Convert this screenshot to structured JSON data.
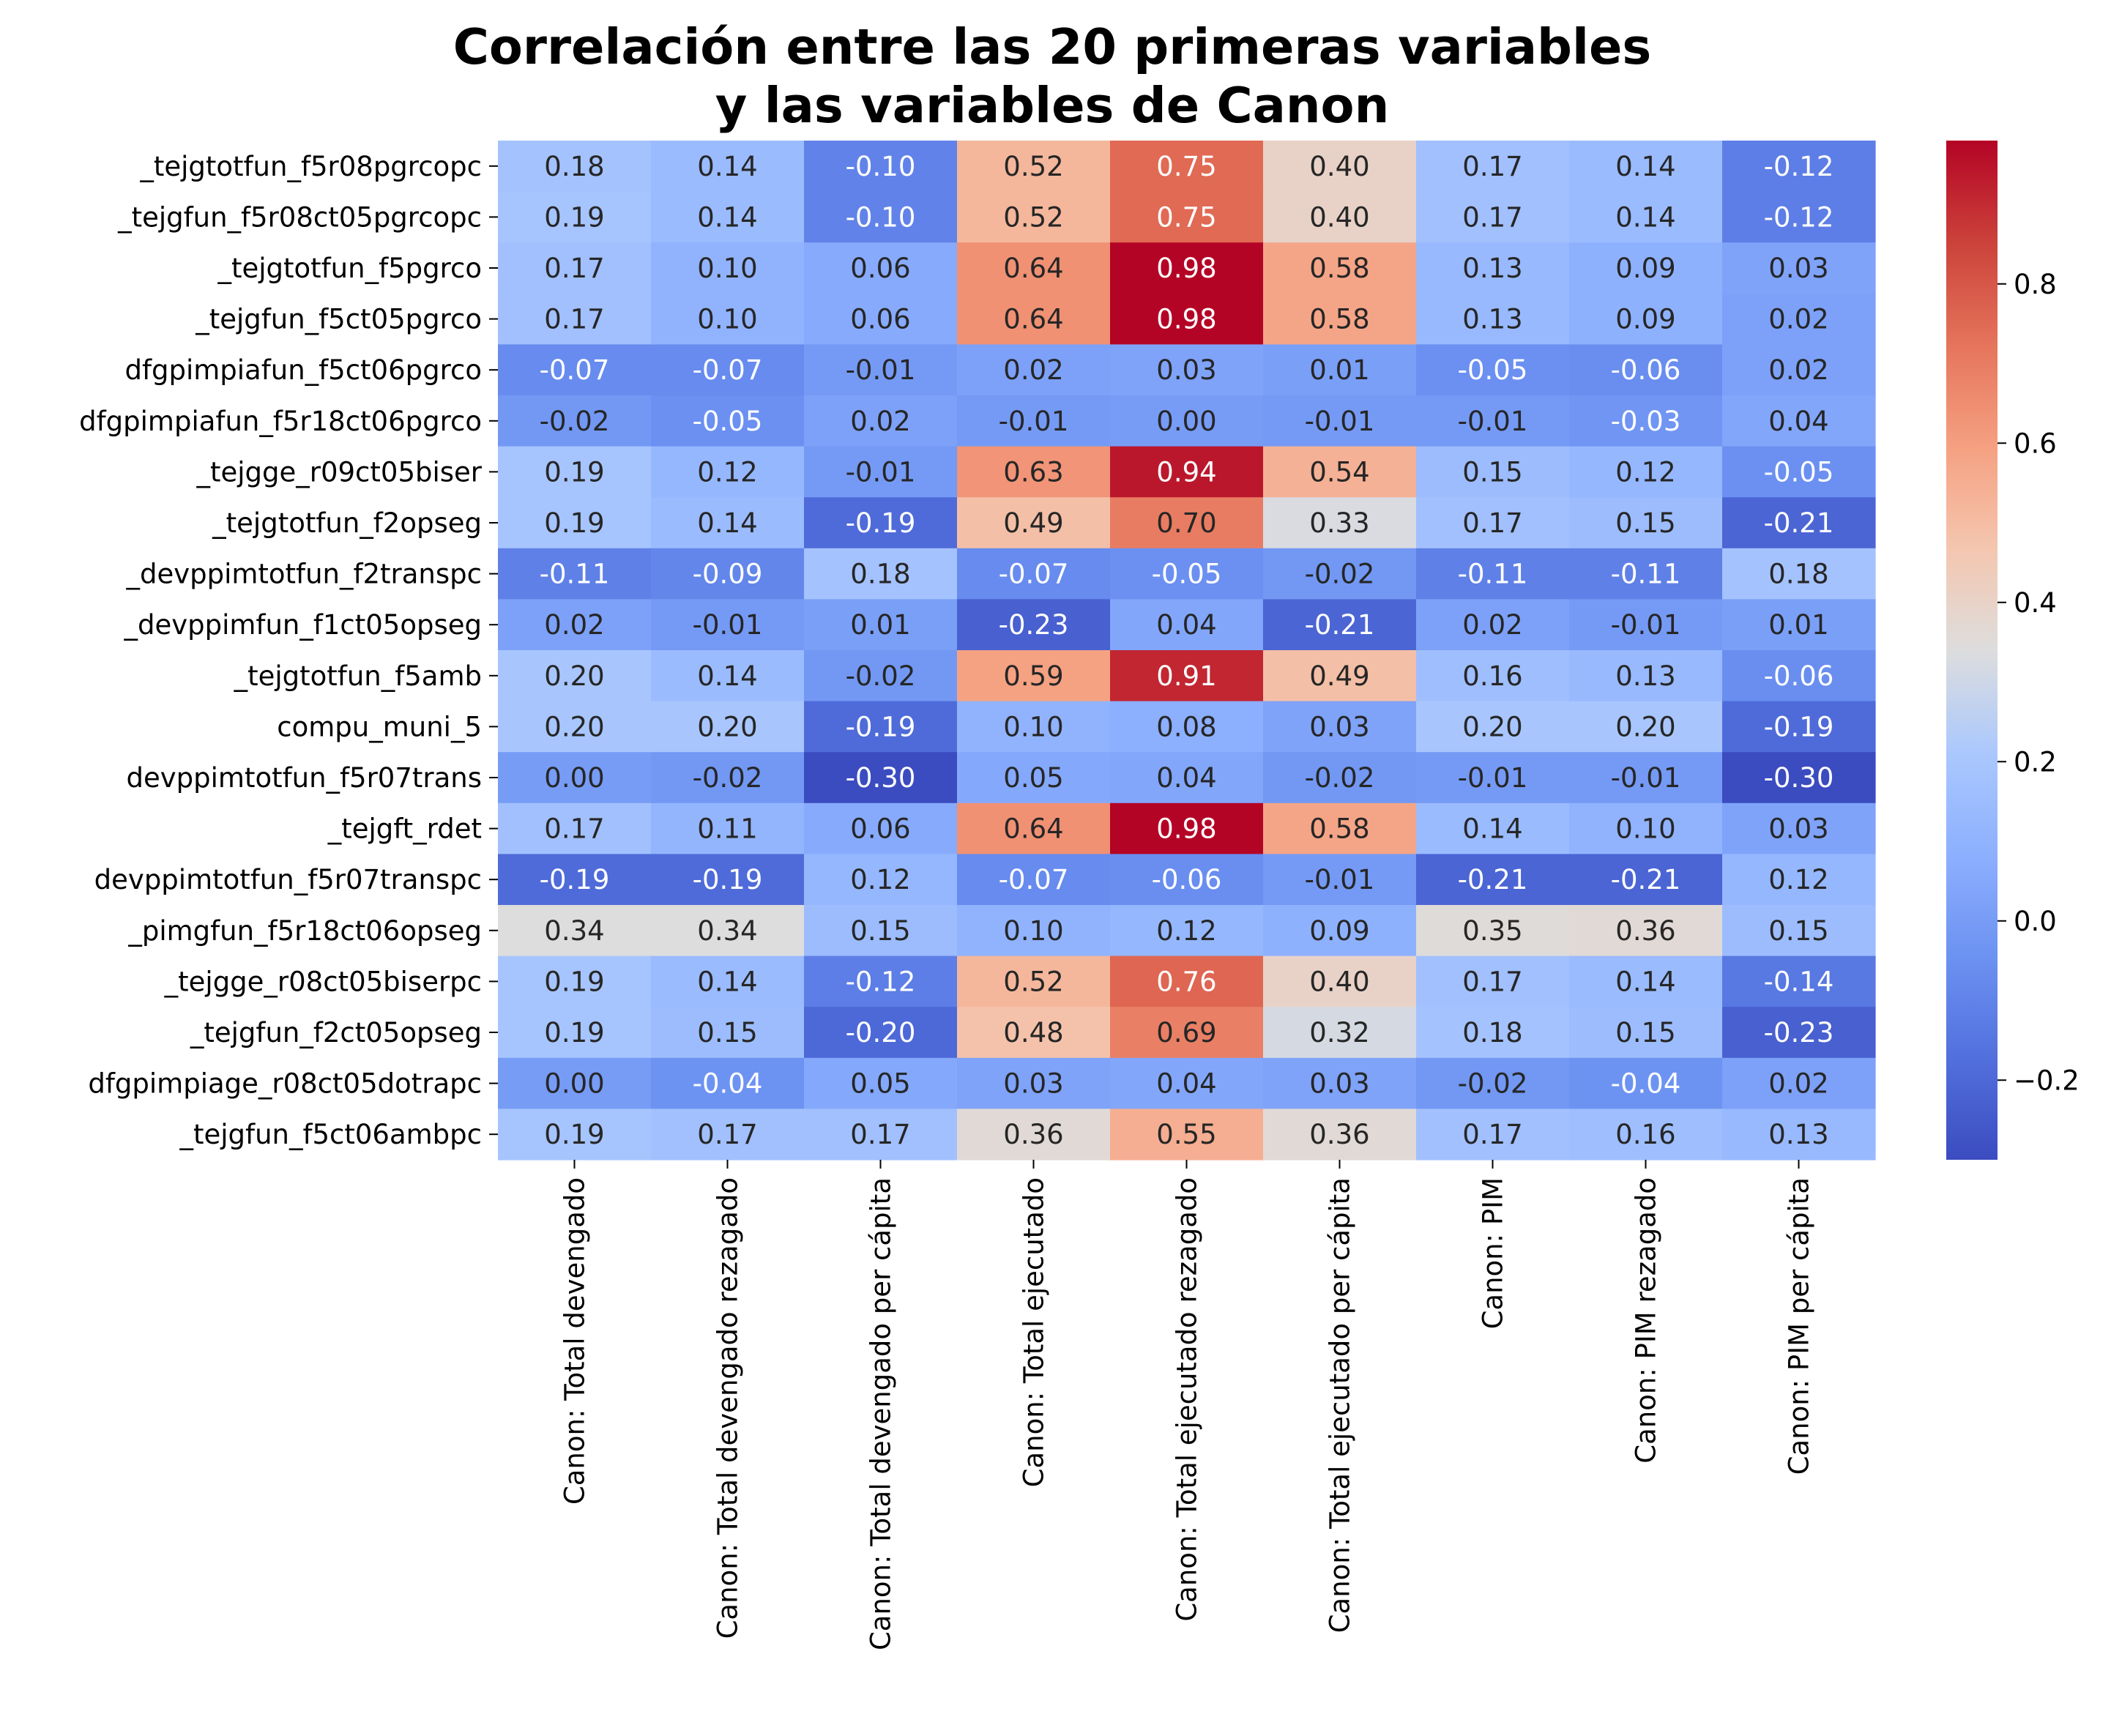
{
  "chart_data": {
    "type": "heatmap",
    "title_lines": [
      "Correlación entre las 20 primeras variables",
      "y las variables de Canon"
    ],
    "xlabel": "",
    "ylabel": "",
    "colormap": "coolwarm",
    "vmin": -0.3,
    "vmax": 0.98,
    "colorbar_ticks": [
      -0.2,
      0.0,
      0.2,
      0.4,
      0.6,
      0.8
    ],
    "colorbar_tick_labels": [
      "−0.2",
      "0.0",
      "0.2",
      "0.4",
      "0.6",
      "0.8"
    ],
    "rows": [
      "_tejgtotfun_f5r08pgrcopc",
      "_tejgfun_f5r08ct05pgrcopc",
      "_tejgtotfun_f5pgrco",
      "_tejgfun_f5ct05pgrco",
      "dfgpimpiafun_f5ct06pgrco",
      "dfgpimpiafun_f5r18ct06pgrco",
      "_tejgge_r09ct05biser",
      "_tejgtotfun_f2opseg",
      "_devppimtotfun_f2transpc",
      "_devppimfun_f1ct05opseg",
      "_tejgtotfun_f5amb",
      "compu_muni_5",
      "devppimtotfun_f5r07trans",
      "_tejgft_rdet",
      "devppimtotfun_f5r07transpc",
      "_pimgfun_f5r18ct06opseg",
      "_tejgge_r08ct05biserpc",
      "_tejgfun_f2ct05opseg",
      "dfgpimpiage_r08ct05dotrapc",
      "_tejgfun_f5ct06ambpc"
    ],
    "columns": [
      "Canon: Total devengado",
      "Canon: Total devengado rezagado",
      "Canon: Total devengado per cápita",
      "Canon: Total ejecutado",
      "Canon: Total ejecutado rezagado",
      "Canon: Total ejecutado per cápita",
      "Canon: PIM",
      "Canon: PIM rezagado",
      "Canon: PIM per cápita"
    ],
    "values": [
      [
        0.18,
        0.14,
        -0.1,
        0.52,
        0.75,
        0.4,
        0.17,
        0.14,
        -0.12
      ],
      [
        0.19,
        0.14,
        -0.1,
        0.52,
        0.75,
        0.4,
        0.17,
        0.14,
        -0.12
      ],
      [
        0.17,
        0.1,
        0.06,
        0.64,
        0.98,
        0.58,
        0.13,
        0.09,
        0.03
      ],
      [
        0.17,
        0.1,
        0.06,
        0.64,
        0.98,
        0.58,
        0.13,
        0.09,
        0.02
      ],
      [
        -0.07,
        -0.07,
        -0.01,
        0.02,
        0.03,
        0.01,
        -0.05,
        -0.06,
        0.02
      ],
      [
        -0.02,
        -0.05,
        0.02,
        -0.01,
        0.0,
        -0.01,
        -0.01,
        -0.03,
        0.04
      ],
      [
        0.19,
        0.12,
        -0.01,
        0.63,
        0.94,
        0.54,
        0.15,
        0.12,
        -0.05
      ],
      [
        0.19,
        0.14,
        -0.19,
        0.49,
        0.7,
        0.33,
        0.17,
        0.15,
        -0.21
      ],
      [
        -0.11,
        -0.09,
        0.18,
        -0.07,
        -0.05,
        -0.02,
        -0.11,
        -0.11,
        0.18
      ],
      [
        0.02,
        -0.01,
        0.01,
        -0.23,
        0.04,
        -0.21,
        0.02,
        -0.01,
        0.01
      ],
      [
        0.2,
        0.14,
        -0.02,
        0.59,
        0.91,
        0.49,
        0.16,
        0.13,
        -0.06
      ],
      [
        0.2,
        0.2,
        -0.19,
        0.1,
        0.08,
        0.03,
        0.2,
        0.2,
        -0.19
      ],
      [
        0.0,
        -0.02,
        -0.3,
        0.05,
        0.04,
        -0.02,
        -0.01,
        -0.01,
        -0.3
      ],
      [
        0.17,
        0.11,
        0.06,
        0.64,
        0.98,
        0.58,
        0.14,
        0.1,
        0.03
      ],
      [
        -0.19,
        -0.19,
        0.12,
        -0.07,
        -0.06,
        -0.01,
        -0.21,
        -0.21,
        0.12
      ],
      [
        0.34,
        0.34,
        0.15,
        0.1,
        0.12,
        0.09,
        0.35,
        0.36,
        0.15
      ],
      [
        0.19,
        0.14,
        -0.12,
        0.52,
        0.76,
        0.4,
        0.17,
        0.14,
        -0.14
      ],
      [
        0.19,
        0.15,
        -0.2,
        0.48,
        0.69,
        0.32,
        0.18,
        0.15,
        -0.23
      ],
      [
        0.0,
        -0.04,
        0.05,
        0.03,
        0.04,
        0.03,
        -0.02,
        -0.04,
        0.02
      ],
      [
        0.19,
        0.17,
        0.17,
        0.36,
        0.55,
        0.36,
        0.17,
        0.16,
        0.13
      ]
    ]
  }
}
